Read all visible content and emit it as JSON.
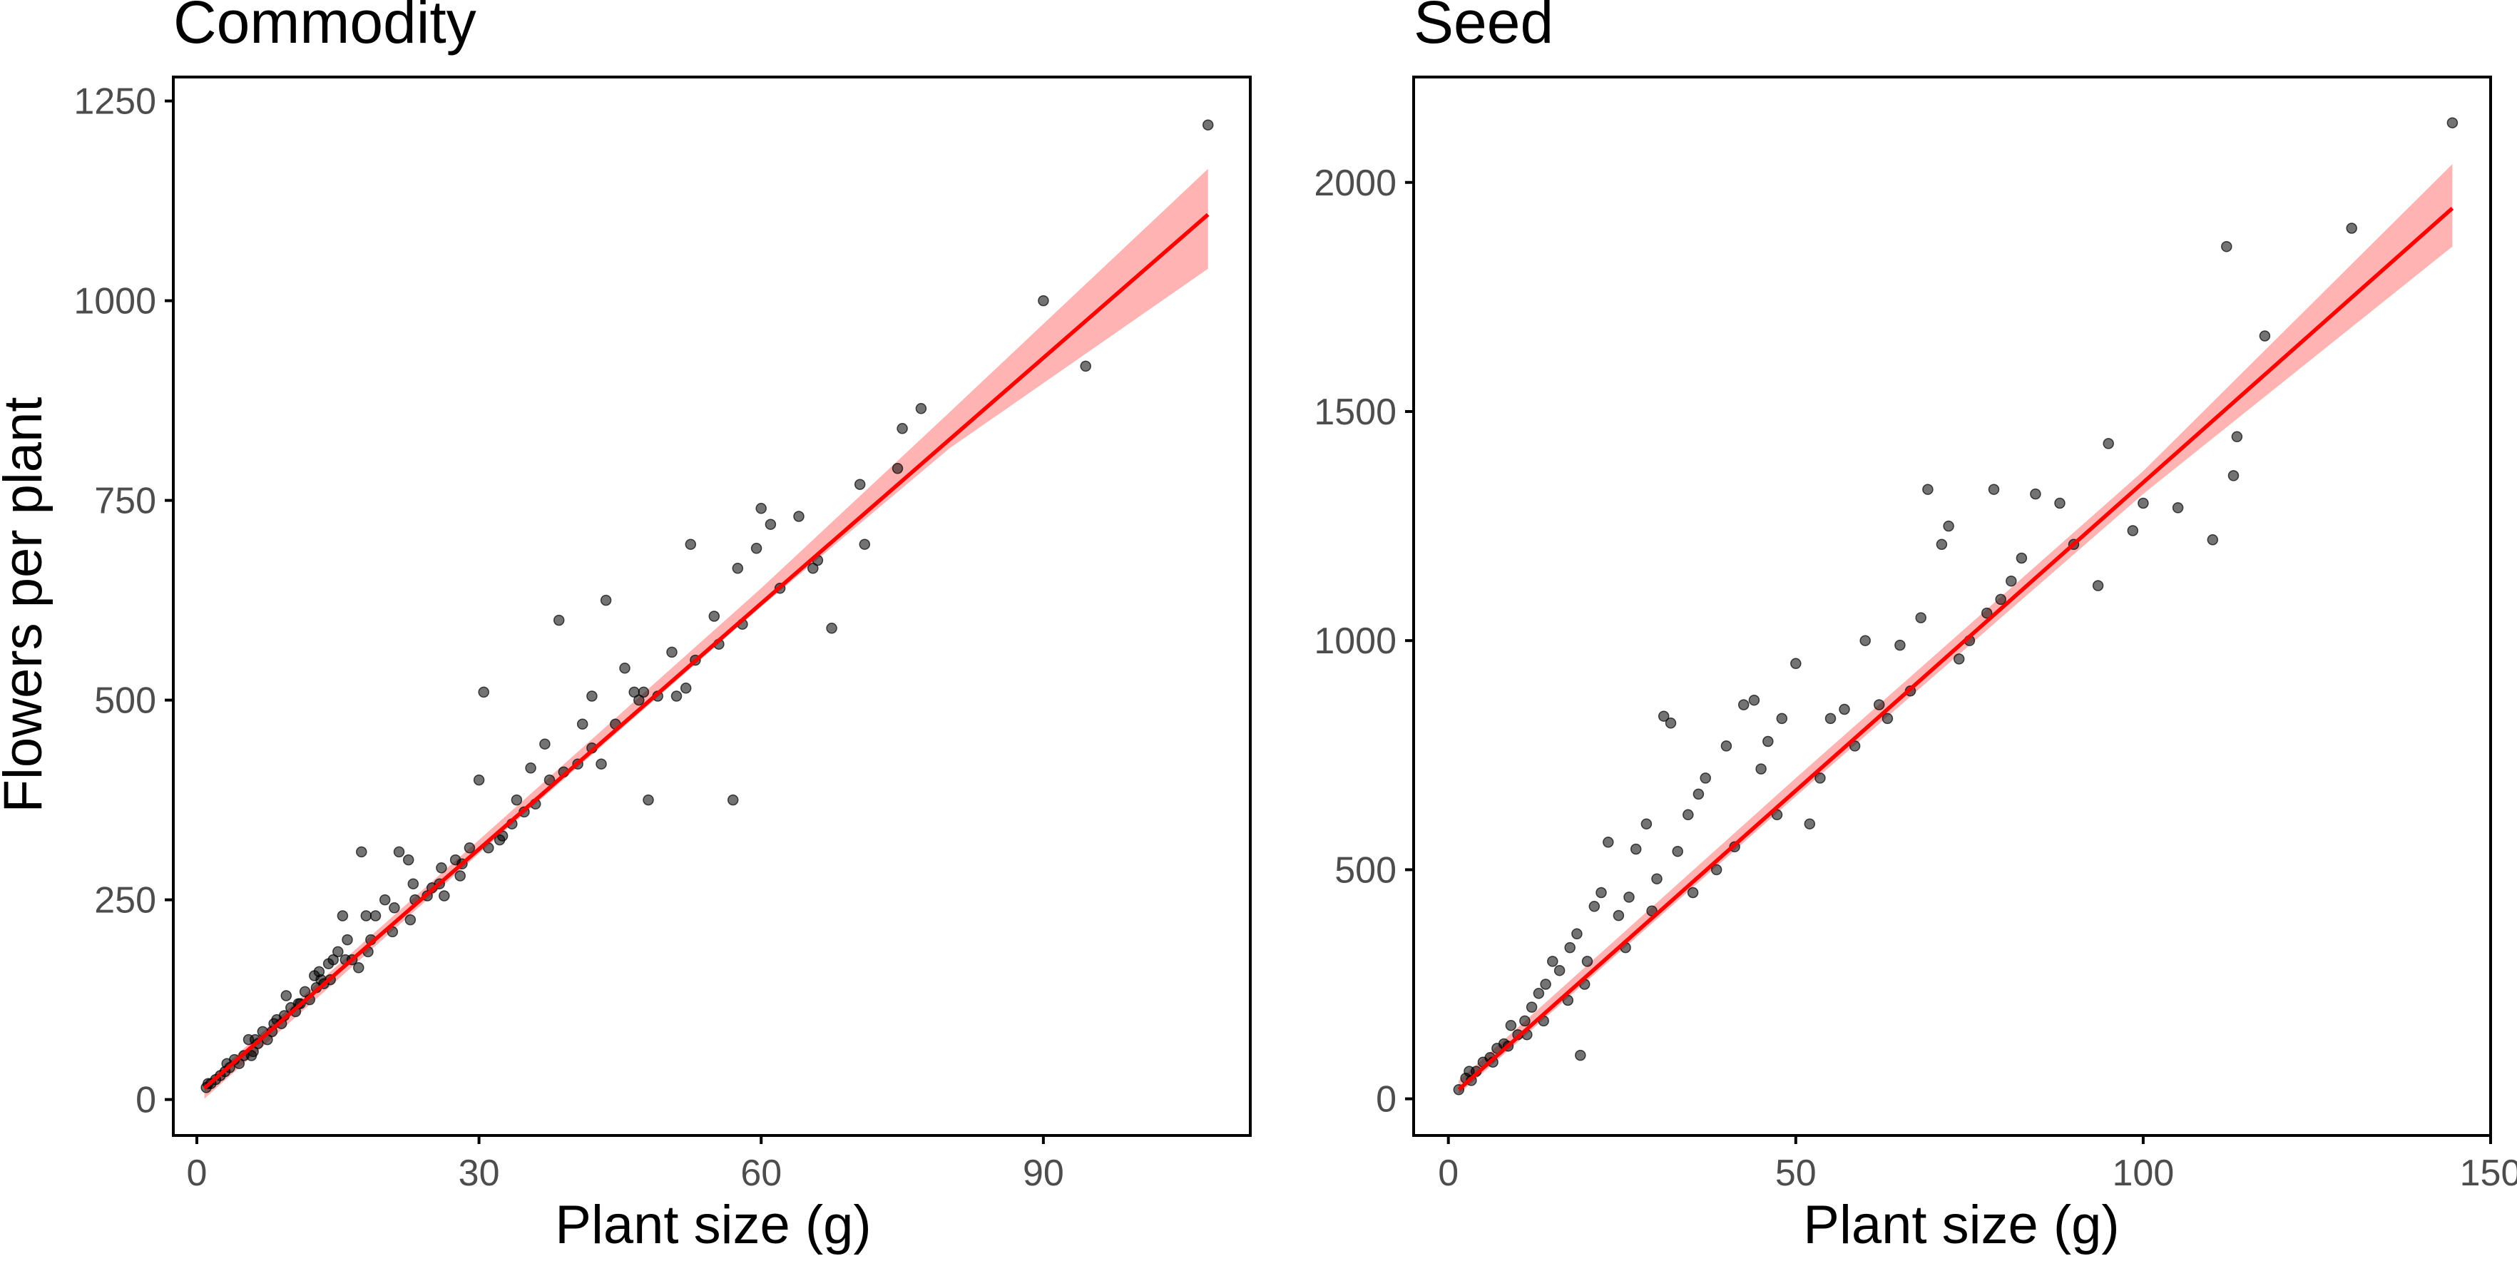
{
  "ylabel": "Flowers per plant",
  "colors": {
    "points": "#000000",
    "fit_line": "#ff0000",
    "ci_band": "#ff9999",
    "tick_text": "#4d4d4d",
    "axis": "#000000"
  },
  "chart_data": [
    {
      "type": "scatter",
      "title": "Commodity",
      "xlabel": "Plant size (g)",
      "ylabel": "Flowers per plant",
      "xlim": [
        -2.5,
        112
      ],
      "ylim": [
        -45,
        1280
      ],
      "xticks": [
        0,
        30,
        60,
        90
      ],
      "yticks": [
        0,
        250,
        500,
        750,
        1000,
        1250
      ],
      "grid": false,
      "trend": {
        "type": "linear",
        "intercept": 6,
        "slope": 10.25,
        "x_range": [
          0.8,
          107.5
        ]
      },
      "ci": {
        "x": [
          0.8,
          30,
          60,
          80,
          107.5
        ],
        "lower": [
          1,
          308,
          617,
          815,
          1040
        ],
        "upper": [
          20,
          325,
          640,
          860,
          1165
        ]
      },
      "points": {
        "x": [
          107.5,
          90,
          94.5,
          77,
          75,
          74.5,
          70.5,
          71,
          67.5,
          65.5,
          64,
          61,
          60,
          59.5,
          57.5,
          57,
          55,
          52.5,
          52,
          51,
          50.5,
          48,
          47.5,
          46.5,
          45.5,
          43.5,
          43,
          42,
          41,
          38.5,
          37.5,
          37,
          35.5,
          34,
          32.5,
          30.5,
          30,
          29,
          28,
          27.5,
          26,
          25,
          24.5,
          23,
          22.5,
          21.5,
          21,
          20,
          19,
          18.5,
          18,
          17.5,
          16.5,
          16,
          15.5,
          15,
          14.5,
          14,
          13.5,
          13,
          12.5,
          12,
          11.5,
          11,
          10.5,
          10,
          9.5,
          9,
          8.5,
          8,
          7.5,
          7,
          6.5,
          6,
          5.5,
          5,
          4.5,
          4,
          3.5,
          3,
          2.5,
          2,
          1.5,
          1,
          1.2,
          3.2,
          5.8,
          8.2,
          10.8,
          13.2,
          15.8,
          18.2,
          20.8,
          23.2,
          25.8,
          28.2,
          31,
          33.5,
          36,
          39,
          42,
          44.5,
          47,
          49,
          53,
          55.5,
          58,
          62,
          66,
          9.3,
          12.7,
          17.2,
          22.7,
          26.3,
          32.2,
          34.8,
          40.5,
          6.2,
          14.2
        ],
        "y": [
          1220,
          1000,
          918,
          865,
          840,
          790,
          770,
          695,
          590,
          665,
          730,
          720,
          740,
          690,
          665,
          375,
          605,
          695,
          515,
          505,
          560,
          375,
          510,
          510,
          540,
          625,
          420,
          505,
          470,
          600,
          400,
          445,
          415,
          375,
          330,
          510,
          400,
          315,
          280,
          300,
          290,
          265,
          255,
          270,
          300,
          310,
          240,
          250,
          230,
          200,
          230,
          310,
          175,
          200,
          230,
          185,
          175,
          170,
          145,
          160,
          155,
          125,
          135,
          120,
          110,
          115,
          130,
          95,
          100,
          85,
          75,
          85,
          70,
          60,
          75,
          55,
          45,
          50,
          40,
          35,
          30,
          25,
          20,
          15,
          20,
          45,
          55,
          95,
          120,
          150,
          175,
          185,
          210,
          250,
          270,
          295,
          315,
          345,
          370,
          410,
          440,
          470,
          500,
          505,
          550,
          570,
          595,
          640,
          675,
          105,
          140,
          165,
          225,
          255,
          325,
          360,
          420,
          75,
          150
        ]
      }
    },
    {
      "type": "scatter",
      "title": "Seed",
      "xlabel": "Plant size (g)",
      "ylabel": "",
      "xlim": [
        -5,
        150
      ],
      "ylim": [
        -80,
        2230
      ],
      "xticks": [
        0,
        50,
        100,
        150
      ],
      "yticks": [
        0,
        500,
        1000,
        1500,
        2000
      ],
      "grid": false,
      "trend": {
        "type": "linear",
        "intercept": 0,
        "slope": 13.45,
        "x_range": [
          1.5,
          144.5
        ]
      },
      "ci": {
        "x": [
          1.5,
          50,
          100,
          144.5
        ],
        "lower": [
          10,
          660,
          1320,
          1860
        ],
        "upper": [
          40,
          700,
          1370,
          2040
        ]
      },
      "points": {
        "x": [
          144.5,
          130,
          112,
          117.5,
          113.5,
          113,
          110,
          105,
          100,
          98.5,
          95,
          93.5,
          88,
          84.5,
          82.5,
          81,
          79.5,
          78.5,
          75,
          72,
          71,
          69,
          68,
          65,
          60,
          62,
          57,
          55,
          52,
          50,
          48,
          46,
          45,
          44,
          42.5,
          40,
          37,
          36,
          34.5,
          33,
          32,
          31,
          30,
          28.5,
          27,
          26,
          24.5,
          23,
          22,
          21,
          20,
          19,
          18.5,
          17.5,
          16,
          15,
          14,
          13,
          12,
          11,
          10,
          9,
          8,
          7,
          6,
          5,
          4,
          3,
          2.5,
          1.5,
          3.3,
          6.4,
          8.6,
          11.3,
          13.7,
          17.2,
          19.6,
          25.5,
          29.3,
          35.2,
          38.6,
          41.2,
          47.3,
          53.5,
          58.5,
          63.2,
          66.5,
          73.5,
          77.5,
          90
        ],
        "y": [
          2130,
          1900,
          1860,
          1665,
          1445,
          1360,
          1220,
          1290,
          1300,
          1240,
          1430,
          1120,
          1300,
          1320,
          1180,
          1130,
          1090,
          1330,
          1000,
          1250,
          1210,
          1330,
          1050,
          990,
          1000,
          860,
          850,
          830,
          600,
          950,
          830,
          780,
          720,
          870,
          860,
          770,
          700,
          665,
          620,
          540,
          820,
          835,
          480,
          600,
          545,
          440,
          400,
          560,
          450,
          420,
          300,
          95,
          360,
          330,
          280,
          300,
          250,
          230,
          200,
          170,
          140,
          160,
          120,
          110,
          90,
          80,
          60,
          60,
          45,
          20,
          40,
          80,
          115,
          140,
          170,
          215,
          250,
          330,
          410,
          450,
          500,
          550,
          620,
          700,
          770,
          830,
          890,
          960,
          1060,
          1210
        ]
      }
    }
  ]
}
